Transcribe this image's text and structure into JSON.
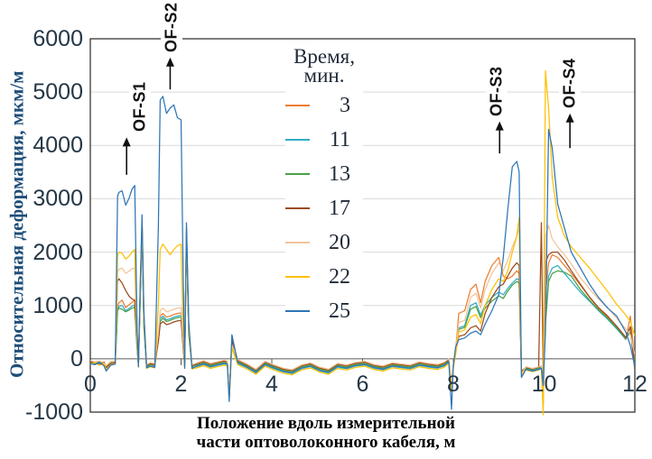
{
  "chart_data": {
    "type": "line",
    "ylabel": "Относительная деформация, мкм/м",
    "xlabel_line1": "Положение вдоль измерительной",
    "xlabel_line2": "части оптоволоконного кабеля, м",
    "legend_title_line1": "Время,",
    "legend_title_line2": "мин.",
    "xlim": [
      0,
      12
    ],
    "ylim": [
      -1000,
      6000
    ],
    "x_ticks": [
      0,
      2,
      4,
      6,
      8,
      10,
      12
    ],
    "y_ticks": [
      6000,
      5000,
      4000,
      3000,
      2000,
      1000,
      0,
      -1000
    ],
    "grid": "horizontal",
    "grid_color": "#D9D9D9",
    "frame_color": "#262626",
    "zero_axis_color": "#595959",
    "tick_label_color": "#243746",
    "ylabel_color": "#1F4E79",
    "annotations": [
      {
        "label": "OF-S1",
        "x": 0.8,
        "arrow_from": 3450,
        "arrow_to": 4150,
        "label_dx": 15
      },
      {
        "label": "OF-S2",
        "x": 1.76,
        "arrow_from": 5050,
        "arrow_to": 5650,
        "label_dx": 2
      },
      {
        "label": "OF-S3",
        "x": 9.02,
        "arrow_from": 3850,
        "arrow_to": 4450,
        "label_dx": -3
      },
      {
        "label": "OF-S4",
        "x": 10.57,
        "arrow_from": 3950,
        "arrow_to": 4600,
        "label_dx": 0
      }
    ],
    "x": [
      0,
      0.1,
      0.2,
      0.3,
      0.35,
      0.45,
      0.55,
      0.6,
      0.63,
      0.7,
      0.78,
      0.85,
      0.92,
      0.98,
      1.03,
      1.06,
      1.1,
      1.14,
      1.18,
      1.24,
      1.32,
      1.42,
      1.5,
      1.54,
      1.6,
      1.68,
      1.76,
      1.84,
      1.92,
      2,
      2.04,
      2.08,
      2.12,
      2.17,
      2.24,
      2.35,
      2.5,
      2.65,
      2.8,
      2.95,
      3.02,
      3.06,
      3.12,
      3.25,
      3.45,
      3.65,
      3.85,
      4.05,
      4.25,
      4.45,
      4.65,
      4.85,
      5.05,
      5.25,
      5.45,
      5.65,
      5.85,
      6.05,
      6.25,
      6.45,
      6.65,
      6.85,
      7.05,
      7.25,
      7.45,
      7.65,
      7.8,
      7.9,
      7.96,
      8,
      8.05,
      8.12,
      8.25,
      8.38,
      8.5,
      8.6,
      8.7,
      8.85,
      9,
      9.1,
      9.2,
      9.3,
      9.4,
      9.45,
      9.5,
      9.6,
      9.75,
      9.88,
      9.94,
      9.98,
      10.03,
      10.1,
      10.18,
      10.3,
      10.45,
      10.6,
      10.8,
      11,
      11.2,
      11.4,
      11.6,
      11.8,
      11.9,
      12
    ],
    "series": [
      {
        "name": "3",
        "color": "#ED7D31",
        "y": [
          -60,
          -90,
          -50,
          -110,
          -170,
          -80,
          -60,
          980,
          1050,
          1100,
          960,
          1010,
          1060,
          1100,
          250,
          -130,
          1200,
          2500,
          700,
          -150,
          -110,
          -130,
          420,
          800,
          850,
          780,
          800,
          830,
          850,
          860,
          350,
          -120,
          2380,
          550,
          -150,
          -105,
          -65,
          -115,
          -85,
          -55,
          -70,
          -780,
          320,
          -45,
          -125,
          -225,
          -75,
          -145,
          -205,
          -235,
          -145,
          -105,
          -185,
          -225,
          -115,
          -145,
          -95,
          -75,
          -135,
          -165,
          -105,
          -125,
          -145,
          -85,
          -115,
          -135,
          -95,
          -25,
          -500,
          -130,
          150,
          850,
          900,
          1300,
          1400,
          1050,
          1450,
          1750,
          1900,
          1550,
          1500,
          1550,
          1650,
          1600,
          -220,
          -170,
          -210,
          -180,
          -160,
          -900,
          1200,
          1800,
          1950,
          1900,
          1750,
          1600,
          1380,
          1150,
          950,
          780,
          570,
          360,
          800,
          -60
        ]
      },
      {
        "name": "11",
        "color": "#2FAEC6",
        "y": [
          -80,
          -60,
          -100,
          -70,
          -190,
          -100,
          -80,
          920,
          980,
          1000,
          900,
          940,
          990,
          1010,
          220,
          -140,
          1150,
          2460,
          650,
          -160,
          -130,
          -150,
          380,
          750,
          800,
          730,
          750,
          780,
          800,
          810,
          320,
          -140,
          2340,
          500,
          -170,
          -145,
          -105,
          -155,
          -125,
          -95,
          -110,
          -720,
          290,
          -85,
          -165,
          -265,
          -115,
          -185,
          -245,
          -275,
          -185,
          -145,
          -225,
          -265,
          -155,
          -185,
          -135,
          -115,
          -175,
          -205,
          -145,
          -165,
          -185,
          -125,
          -155,
          -175,
          -135,
          -65,
          -560,
          -150,
          100,
          580,
          620,
          1000,
          1050,
          820,
          1000,
          1150,
          1250,
          1200,
          1320,
          1420,
          1500,
          1480,
          -260,
          -190,
          -220,
          -190,
          -170,
          -420,
          700,
          1550,
          1700,
          1750,
          1600,
          1450,
          1250,
          1080,
          900,
          740,
          560,
          370,
          600,
          -160
        ]
      },
      {
        "name": "13",
        "color": "#4AA147",
        "y": [
          -70,
          -100,
          -60,
          -90,
          -150,
          -70,
          -90,
          900,
          950,
          930,
          880,
          910,
          950,
          970,
          200,
          -120,
          1100,
          2420,
          600,
          -140,
          -100,
          -120,
          350,
          700,
          760,
          700,
          720,
          750,
          770,
          780,
          300,
          -110,
          2300,
          450,
          -140,
          -115,
          -75,
          -125,
          -95,
          -65,
          -85,
          -700,
          270,
          -55,
          -135,
          -235,
          -85,
          -155,
          -215,
          -245,
          -155,
          -115,
          -195,
          -235,
          -125,
          -155,
          -105,
          -85,
          -145,
          -175,
          -115,
          -135,
          -155,
          -95,
          -125,
          -145,
          -105,
          -35,
          -520,
          -120,
          90,
          550,
          590,
          930,
          980,
          770,
          950,
          1080,
          1180,
          1130,
          1270,
          1380,
          1450,
          1420,
          -240,
          -180,
          -200,
          -170,
          -150,
          -400,
          650,
          1450,
          1600,
          1650,
          1620,
          1550,
          1300,
          1100,
          920,
          760,
          580,
          380,
          500,
          -110
        ]
      },
      {
        "name": "17",
        "color": "#9C4B1E",
        "y": [
          -50,
          -80,
          -110,
          -60,
          -160,
          -90,
          -70,
          1450,
          1500,
          1420,
          1280,
          1180,
          1120,
          1100,
          300,
          -110,
          1250,
          2540,
          750,
          -130,
          -90,
          -110,
          330,
          650,
          700,
          640,
          660,
          690,
          710,
          720,
          280,
          -130,
          2400,
          520,
          -130,
          -90,
          -50,
          -100,
          -70,
          -40,
          -60,
          -730,
          350,
          -30,
          -110,
          -210,
          -60,
          -130,
          -190,
          -220,
          -130,
          -90,
          -170,
          -210,
          -100,
          -130,
          -80,
          -60,
          -120,
          -150,
          -90,
          -110,
          -130,
          -70,
          -100,
          -120,
          -80,
          -10,
          -470,
          -110,
          120,
          420,
          450,
          580,
          620,
          520,
          850,
          1150,
          1350,
          1400,
          1550,
          1700,
          1800,
          1750,
          -250,
          -160,
          -190,
          -160,
          2550,
          -280,
          1800,
          1950,
          2000,
          2000,
          1850,
          1650,
          1400,
          1160,
          960,
          800,
          610,
          400,
          600,
          -220
        ]
      },
      {
        "name": "20",
        "color": "#F2C49B",
        "y": [
          -30,
          -60,
          -40,
          -80,
          -130,
          -50,
          -40,
          1620,
          1680,
          1700,
          1600,
          1640,
          1690,
          1700,
          350,
          -90,
          1300,
          2570,
          800,
          -110,
          -70,
          -90,
          500,
          900,
          950,
          880,
          900,
          930,
          950,
          960,
          400,
          -100,
          2420,
          580,
          -110,
          -75,
          -35,
          -85,
          -55,
          -25,
          -45,
          -680,
          260,
          -15,
          -95,
          -195,
          -45,
          -115,
          -175,
          -205,
          -115,
          -75,
          -155,
          -195,
          -85,
          -115,
          -65,
          -45,
          -105,
          -135,
          -75,
          -95,
          -115,
          -55,
          -85,
          -105,
          -65,
          5,
          -430,
          -95,
          130,
          680,
          720,
          1150,
          1230,
          950,
          1300,
          1600,
          1800,
          1650,
          1850,
          2100,
          2300,
          2450,
          -280,
          -150,
          -180,
          -150,
          -130,
          -760,
          2300,
          2500,
          2250,
          2100,
          1950,
          1780,
          1520,
          1310,
          1120,
          960,
          760,
          560,
          450,
          80
        ]
      },
      {
        "name": "22",
        "color": "#FFC000",
        "y": [
          -100,
          -70,
          -120,
          -90,
          -200,
          -110,
          -90,
          1950,
          2000,
          1980,
          1870,
          1920,
          2000,
          2050,
          400,
          -160,
          1350,
          2600,
          850,
          -180,
          -150,
          -170,
          1000,
          2050,
          2150,
          2050,
          1950,
          2050,
          2120,
          2150,
          800,
          -160,
          2450,
          620,
          -190,
          -170,
          -130,
          -180,
          -150,
          -120,
          -135,
          -760,
          200,
          -110,
          -190,
          -290,
          -140,
          -210,
          -270,
          -300,
          -210,
          -170,
          -250,
          -290,
          -180,
          -210,
          -160,
          -140,
          -200,
          -230,
          -170,
          -190,
          -210,
          -150,
          -180,
          -200,
          -160,
          -90,
          -620,
          -170,
          80,
          500,
          540,
          780,
          830,
          660,
          1000,
          1300,
          1500,
          1450,
          1650,
          2000,
          2300,
          2650,
          -300,
          -210,
          -240,
          -210,
          -190,
          -1050,
          5400,
          4700,
          3400,
          2650,
          2300,
          2100,
          1900,
          1700,
          1480,
          1260,
          1020,
          820,
          700,
          430
        ]
      },
      {
        "name": "25",
        "color": "#2E75B6",
        "y": [
          -90,
          -110,
          -70,
          -130,
          -230,
          -120,
          -100,
          3050,
          3120,
          3150,
          2880,
          3000,
          3180,
          3250,
          600,
          -150,
          1400,
          2700,
          900,
          -170,
          -140,
          -160,
          2500,
          4850,
          4920,
          4600,
          4700,
          4760,
          4520,
          4480,
          2000,
          -180,
          2550,
          700,
          -180,
          -135,
          -95,
          -145,
          -115,
          -85,
          -100,
          -800,
          450,
          -75,
          -155,
          -255,
          -105,
          -175,
          -235,
          -265,
          -175,
          -135,
          -215,
          -255,
          -145,
          -175,
          -125,
          -105,
          -165,
          -195,
          -135,
          -155,
          -175,
          -115,
          -145,
          -165,
          -125,
          -55,
          -950,
          -140,
          220,
          360,
          390,
          480,
          520,
          450,
          650,
          900,
          1200,
          1900,
          2800,
          3600,
          3700,
          3500,
          -350,
          -200,
          -230,
          -200,
          -180,
          -500,
          500,
          4300,
          3950,
          2900,
          2450,
          2000,
          1700,
          1400,
          1150,
          950,
          800,
          500,
          250,
          -150
        ]
      }
    ]
  }
}
